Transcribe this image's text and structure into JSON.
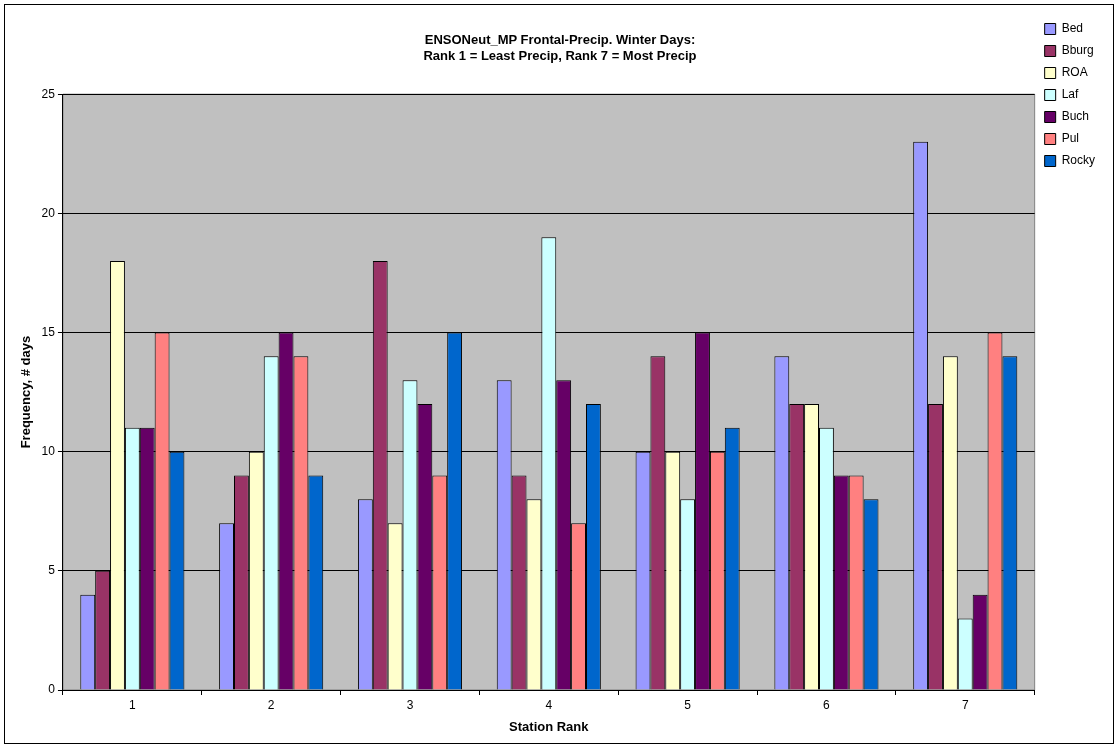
{
  "chart_data": {
    "type": "bar",
    "title": "ENSONeut_MP Frontal-Precip. Winter Days:\nRank 1 = Least Precip, Rank 7 = Most Precip",
    "xlabel": "Station Rank",
    "ylabel": "Frequency, # days",
    "categories": [
      "1",
      "2",
      "3",
      "4",
      "5",
      "6",
      "7"
    ],
    "series": [
      {
        "name": "Bed",
        "color": "#9999ff",
        "values": [
          4,
          7,
          8,
          13,
          10,
          14,
          23
        ]
      },
      {
        "name": "Bburg",
        "color": "#993366",
        "values": [
          5,
          9,
          18,
          9,
          14,
          12,
          12
        ]
      },
      {
        "name": "ROA",
        "color": "#ffffcc",
        "values": [
          18,
          10,
          7,
          8,
          10,
          12,
          14
        ]
      },
      {
        "name": "Laf",
        "color": "#ccffff",
        "values": [
          11,
          14,
          13,
          19,
          8,
          11,
          3
        ]
      },
      {
        "name": "Buch",
        "color": "#660066",
        "values": [
          11,
          15,
          12,
          13,
          15,
          9,
          4
        ]
      },
      {
        "name": "Pul",
        "color": "#ff8080",
        "values": [
          15,
          14,
          9,
          7,
          10,
          9,
          15
        ]
      },
      {
        "name": "Rocky",
        "color": "#0066cc",
        "values": [
          10,
          9,
          15,
          12,
          11,
          8,
          14
        ]
      }
    ],
    "ylim": [
      0,
      25
    ],
    "yticks": [
      0,
      5,
      10,
      15,
      20,
      25
    ],
    "grid": "y",
    "legend": "top right"
  }
}
